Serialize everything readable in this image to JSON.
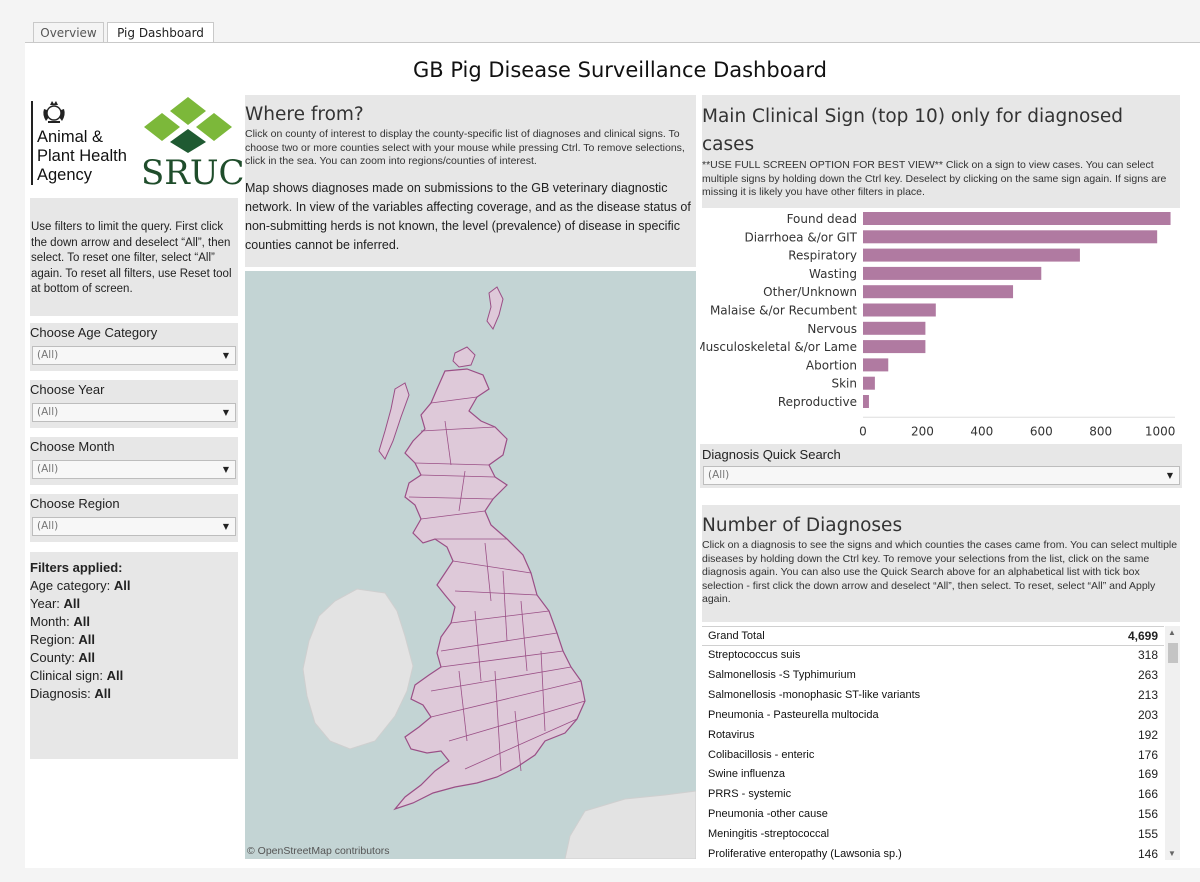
{
  "tabs": [
    {
      "label": "Overview"
    },
    {
      "label": "Pig Dashboard"
    }
  ],
  "dashboard_title": "GB Pig Disease Surveillance Dashboard",
  "logos": {
    "apha": [
      "Animal &",
      "Plant Health",
      "Agency"
    ],
    "sruc": "SRUC",
    "colors": {
      "sruc_green": "#7cb83a",
      "sruc_dark": "#1f5a32"
    }
  },
  "intro_text": "Use filters to limit the query. First click the down arrow and deselect “All”, then select. To reset one filter, select “All” again. To reset all filters, use Reset tool at bottom of screen.",
  "filters": [
    {
      "label": "Choose Age Category",
      "value": "(All)"
    },
    {
      "label": "Choose Year",
      "value": "(All)"
    },
    {
      "label": "Choose Month",
      "value": "(All)"
    },
    {
      "label": "Choose Region",
      "value": "(All)"
    }
  ],
  "filters_applied": {
    "heading": "Filters applied:",
    "items": [
      {
        "label": "Age category: ",
        "value": "All"
      },
      {
        "label": "Year: ",
        "value": "All"
      },
      {
        "label": "Month: ",
        "value": "All"
      },
      {
        "label": "Region: ",
        "value": "All"
      },
      {
        "label": "County: ",
        "value": "All"
      },
      {
        "label": "Clinical sign: ",
        "value": "All"
      },
      {
        "label": "Diagnosis: ",
        "value": "All"
      }
    ]
  },
  "where_from": {
    "heading": "Where from?",
    "instructions": "Click on county of interest to display the county-specific list of diagnoses and clinical signs. To choose two or more counties select with your mouse while pressing Ctrl. To remove selections, click in the sea. You can zoom into regions/counties of interest.",
    "note": "Map shows diagnoses made on submissions to the GB veterinary diagnostic network. In view of the variables affecting coverage, and as the disease status of non-submitting herds is not known, the level (prevalence) of disease in specific counties cannot be inferred."
  },
  "map": {
    "credit": "© OpenStreetMap contributors",
    "colors": {
      "sea": "#c3d4d4",
      "land_other": "#e3e3e3",
      "county_fill": "#dec9d9",
      "county_border": "#9a4f86"
    }
  },
  "clinical_signs": {
    "heading": "Main Clinical Sign (top 10) only for diagnosed cases",
    "instructions": "**USE FULL SCREEN OPTION FOR BEST VIEW** Click on a sign to view cases. You can select multiple signs by holding down the Ctrl key. Deselect by clicking on the same sign again. If signs are missing it is likely you have other filters in place."
  },
  "chart_data": {
    "type": "bar",
    "orientation": "horizontal",
    "categories": [
      "Found dead",
      "Diarrhoea &/or GIT",
      "Respiratory",
      "Wasting",
      "Other/Unknown",
      "Malaise &/or Recumbent",
      "Nervous",
      "Musculoskeletal &/or Lame",
      "Abortion",
      "Skin",
      "Reproductive"
    ],
    "values": [
      1035,
      990,
      730,
      600,
      505,
      245,
      210,
      210,
      85,
      40,
      20
    ],
    "xlim": [
      0,
      1050
    ],
    "xticks": [
      0,
      200,
      400,
      600,
      800,
      1000
    ],
    "color": "#b07aa1",
    "grid": false
  },
  "quick_search": {
    "label": "Diagnosis Quick Search",
    "value": "(All)"
  },
  "diagnoses": {
    "heading": "Number of Diagnoses",
    "instructions": "Click on a diagnosis to see the signs and which counties the cases came from. You can select multiple diseases by holding down the Ctrl key. To remove your selections from the list, click on the same diagnosis again. You can also use the Quick Search above for an alphabetical list with tick box selection - first click the down arrow and deselect “All”, then select. To reset, select “All” and Apply again.",
    "rows": [
      {
        "name": "Grand Total",
        "count": "4,699"
      },
      {
        "name": "Streptococcus suis",
        "count": "318"
      },
      {
        "name": "Salmonellosis -S Typhimurium",
        "count": "263"
      },
      {
        "name": "Salmonellosis -monophasic ST-like variants",
        "count": "213"
      },
      {
        "name": "Pneumonia - Pasteurella multocida",
        "count": "203"
      },
      {
        "name": "Rotavirus",
        "count": "192"
      },
      {
        "name": "Colibacillosis - enteric",
        "count": "176"
      },
      {
        "name": "Swine influenza",
        "count": "169"
      },
      {
        "name": "PRRS - systemic",
        "count": "166"
      },
      {
        "name": "Pneumonia -other cause",
        "count": "156"
      },
      {
        "name": "Meningitis -streptococcal",
        "count": "155"
      },
      {
        "name": "Proliferative enteropathy (Lawsonia sp.)",
        "count": "146"
      }
    ]
  }
}
